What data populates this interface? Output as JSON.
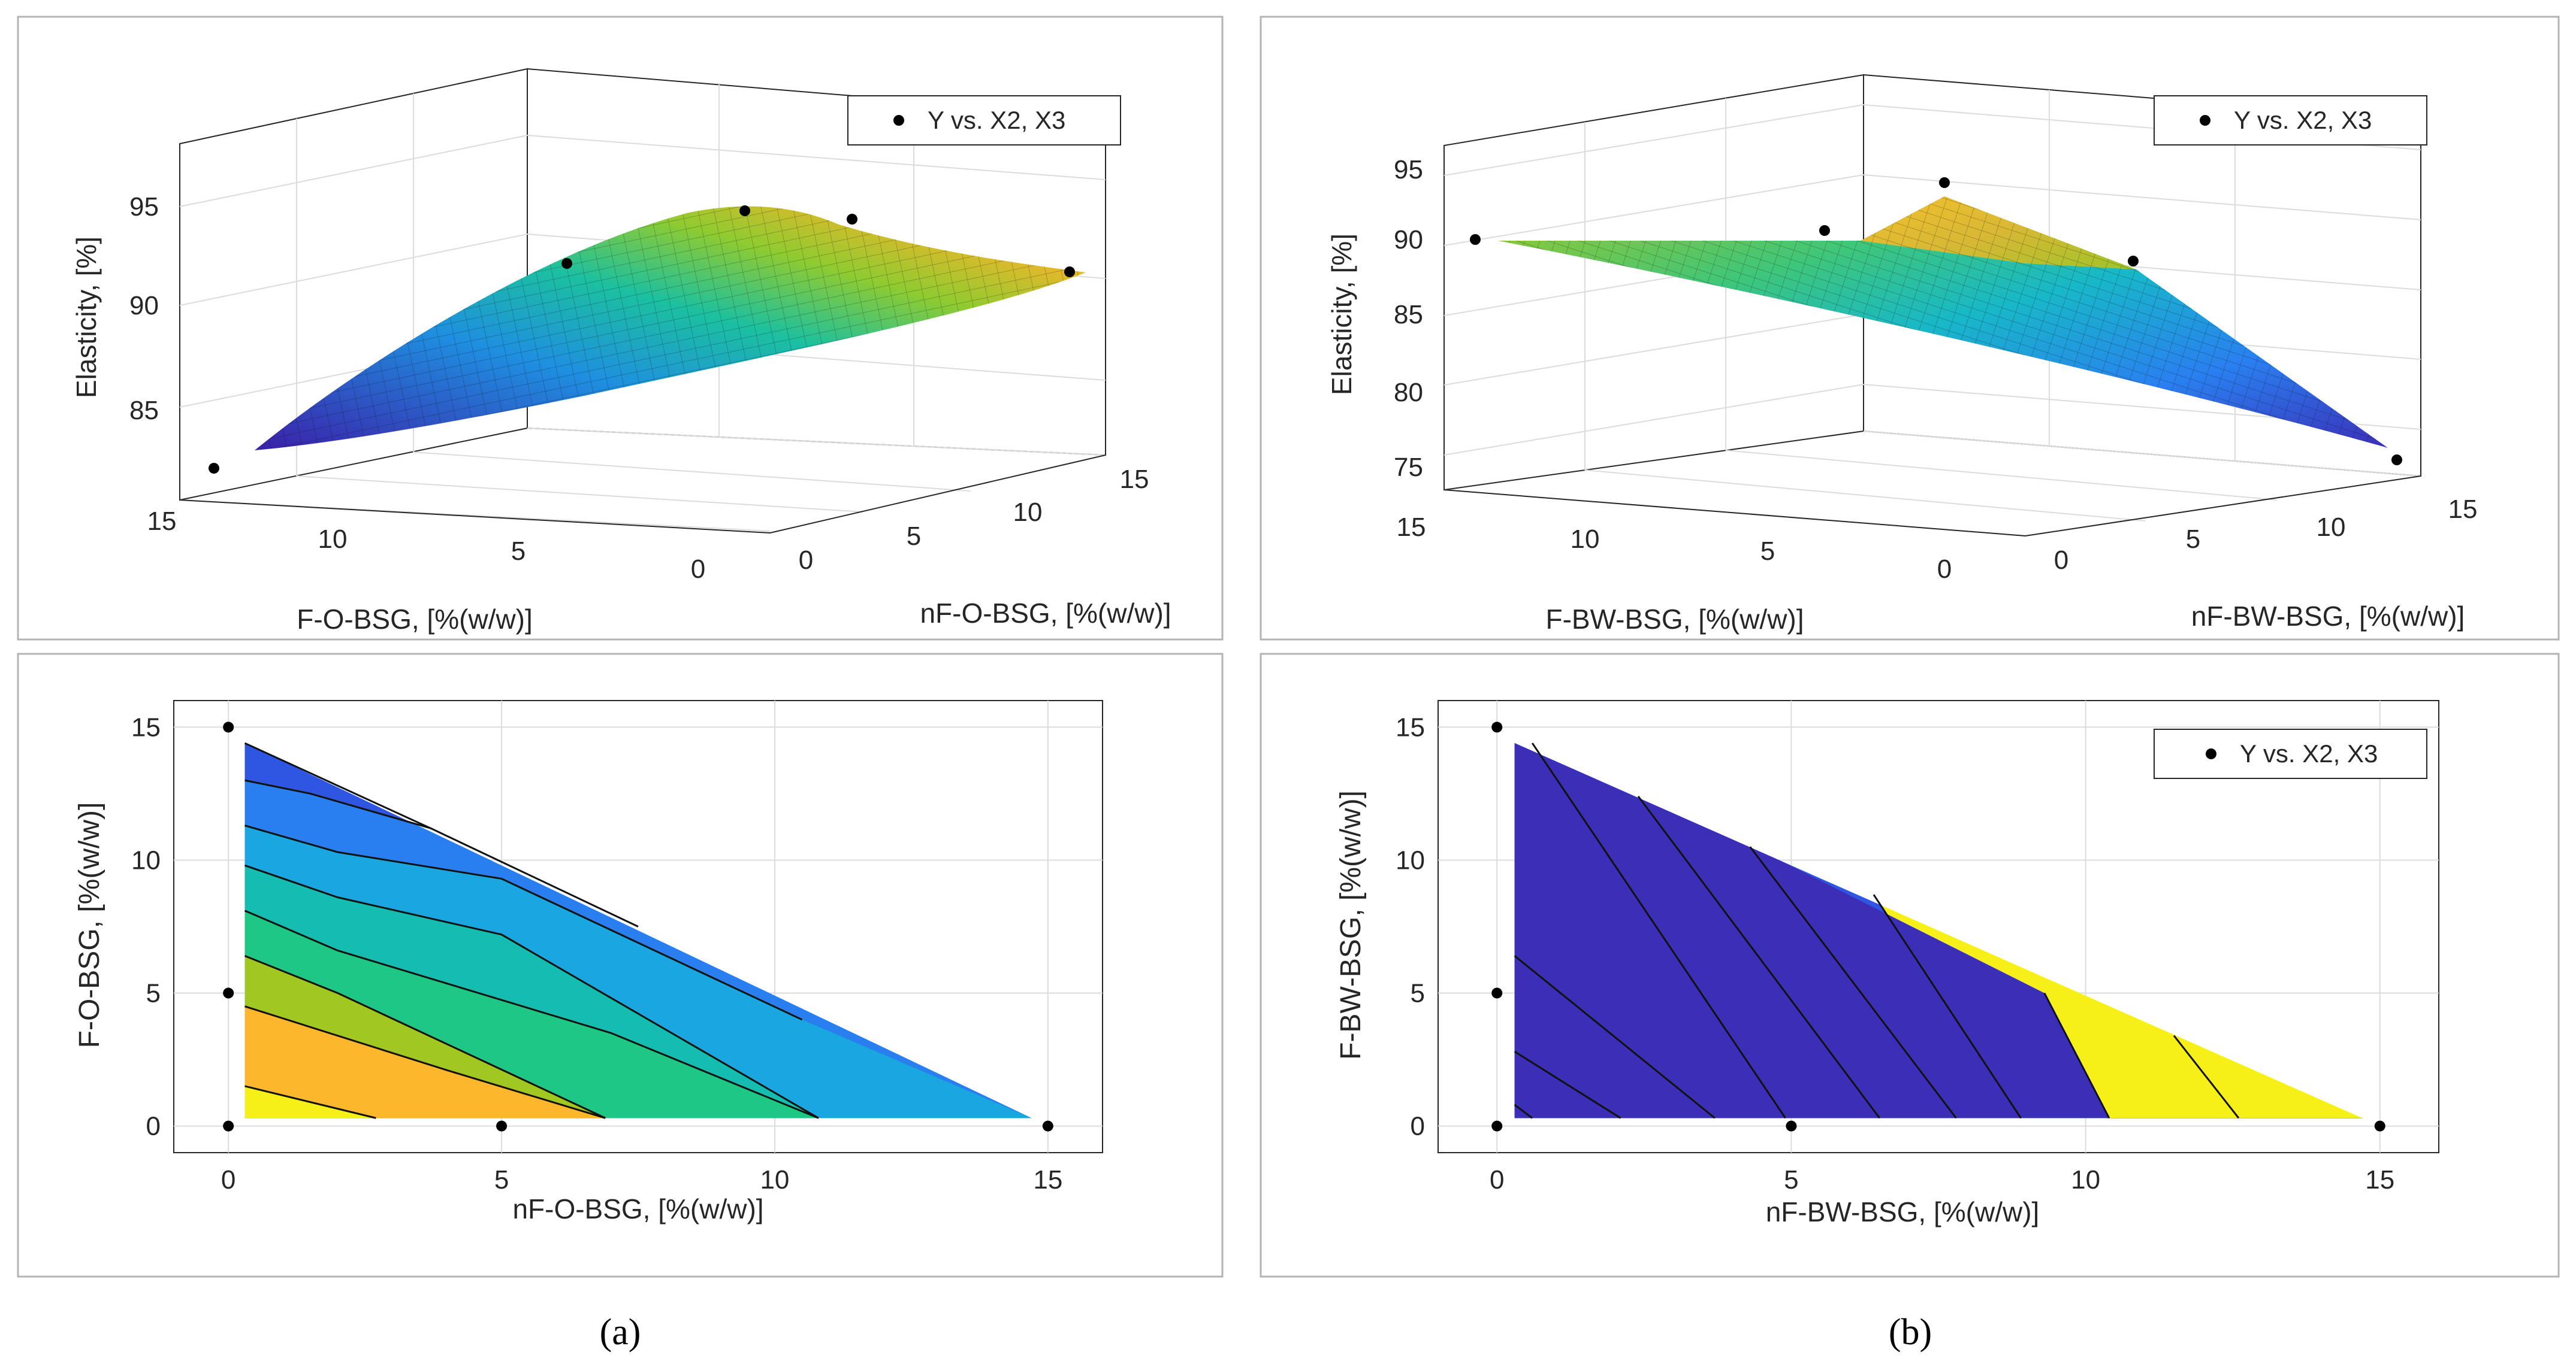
{
  "captions": {
    "a": "(a)",
    "b": "(b)"
  },
  "legend": {
    "label": "Y vs. X2, X3"
  },
  "colors": {
    "frame": "#b3b3b3",
    "grid": "#dcdcdc",
    "axis": "#262626",
    "contour_line": "#111111",
    "points": "#000000"
  },
  "chart_data": [
    {
      "panel": "a-top",
      "type": "surface3d",
      "zlabel": "Elasticity, [%]",
      "xlabel": "F-O-BSG, [%(w/w)]",
      "ylabel": "nF-O-BSG, [%(w/w)]",
      "x_ticks": [
        "15",
        "10",
        "5",
        "0"
      ],
      "y_ticks": [
        "0",
        "5",
        "10",
        "15"
      ],
      "z_ticks": [
        "85",
        "90",
        "95"
      ],
      "points": [
        {
          "x": 15,
          "y": 0,
          "z": 82.3
        },
        {
          "x": 5,
          "y": 0,
          "z": 92.5
        },
        {
          "x": 0,
          "y": 0,
          "z": 94.0
        },
        {
          "x": 0,
          "y": 5,
          "z": 93.5
        },
        {
          "x": 0,
          "y": 15,
          "z": 91.5
        }
      ]
    },
    {
      "panel": "b-top",
      "type": "surface3d",
      "zlabel": "Elasticity, [%]",
      "xlabel": "F-BW-BSG, [%(w/w)]",
      "ylabel": "nF-BW-BSG, [%(w/w)]",
      "x_ticks": [
        "15",
        "10",
        "5",
        "0"
      ],
      "y_ticks": [
        "0",
        "5",
        "10",
        "15"
      ],
      "z_ticks": [
        "75",
        "80",
        "85",
        "90",
        "95"
      ],
      "points": [
        {
          "x": 15,
          "y": 0,
          "z": 90.3
        },
        {
          "x": 5,
          "y": 0,
          "z": 91.0
        },
        {
          "x": 0,
          "y": 0,
          "z": 94.2
        },
        {
          "x": 0,
          "y": 5,
          "z": 88.8
        },
        {
          "x": 0,
          "y": 15,
          "z": 75.3
        }
      ]
    },
    {
      "panel": "a-bottom",
      "type": "contour",
      "xlabel": "nF-O-BSG, [%(w/w)]",
      "ylabel": "F-O-BSG, [%(w/w)]",
      "xlim": [
        -1,
        16
      ],
      "ylim": [
        -1,
        16
      ],
      "x_ticks": [
        "0",
        "5",
        "10",
        "15"
      ],
      "y_ticks": [
        "0",
        "5",
        "10",
        "15"
      ],
      "points": [
        {
          "x": 0,
          "y": 15
        },
        {
          "x": 0,
          "y": 5
        },
        {
          "x": 0,
          "y": 0
        },
        {
          "x": 5,
          "y": 0
        },
        {
          "x": 15,
          "y": 0
        }
      ],
      "levels": [
        {
          "color": "#3b2fb8",
          "boundary": [
            [
              0.3,
              14.4
            ],
            [
              3.7,
              11.2
            ]
          ]
        },
        {
          "color": "#2f56e0",
          "boundary": [
            [
              0.3,
              13.0
            ],
            [
              1.5,
              12.5
            ],
            [
              3.7,
              11.2
            ],
            [
              7.5,
              7.5
            ]
          ]
        },
        {
          "color": "#2a7ff0",
          "boundary": [
            [
              0.3,
              11.3
            ],
            [
              2.0,
              10.3
            ],
            [
              5.0,
              9.3
            ],
            [
              10.5,
              4.0
            ]
          ]
        },
        {
          "color": "#1aa6e0",
          "boundary": [
            [
              0.3,
              9.8
            ],
            [
              2.0,
              8.6
            ],
            [
              5.0,
              7.2
            ],
            [
              10.8,
              0.3
            ]
          ]
        },
        {
          "color": "#14bdb0",
          "boundary": [
            [
              0.3,
              8.1
            ],
            [
              2.0,
              6.6
            ],
            [
              7.0,
              3.5
            ],
            [
              10.8,
              0.3
            ]
          ]
        },
        {
          "color": "#1ec784",
          "boundary": [
            [
              0.3,
              6.4
            ],
            [
              2.0,
              5.0
            ],
            [
              6.9,
              0.3
            ]
          ]
        },
        {
          "color": "#a0c820",
          "boundary": [
            [
              0.3,
              4.5
            ],
            [
              4.0,
              2.1
            ],
            [
              6.9,
              0.3
            ]
          ]
        },
        {
          "color": "#fdb72c",
          "boundary": [
            [
              0.3,
              1.5
            ],
            [
              2.7,
              0.3
            ]
          ]
        },
        {
          "color": "#f7ef18",
          "boundary": []
        }
      ]
    },
    {
      "panel": "b-bottom",
      "type": "contour",
      "xlabel": "nF-BW-BSG, [%(w/w)]",
      "ylabel": "F-BW-BSG, [%(w/w)]",
      "xlim": [
        -1,
        16
      ],
      "ylim": [
        -1,
        16
      ],
      "x_ticks": [
        "0",
        "5",
        "10",
        "15"
      ],
      "y_ticks": [
        "0",
        "5",
        "10",
        "15"
      ],
      "points": [
        {
          "x": 0,
          "y": 15
        },
        {
          "x": 0,
          "y": 5
        },
        {
          "x": 0,
          "y": 0
        },
        {
          "x": 5,
          "y": 0
        },
        {
          "x": 15,
          "y": 0
        }
      ],
      "levels": [
        {
          "color": "#f7ef18",
          "boundary": [
            [
              0.3,
              0.8
            ],
            [
              0.6,
              0.3
            ]
          ]
        },
        {
          "color": "#fdb72c",
          "boundary": [
            [
              0.3,
              2.8
            ],
            [
              2.1,
              0.3
            ]
          ]
        },
        {
          "color": "#a0c820",
          "boundary": [
            [
              0.3,
              6.4
            ],
            [
              3.7,
              0.3
            ]
          ]
        },
        {
          "color": "#1ec784",
          "boundary": [
            [
              0.6,
              14.4
            ],
            [
              4.9,
              0.3
            ]
          ]
        },
        {
          "color": "#14bdb0",
          "boundary": [
            [
              2.4,
              12.4
            ],
            [
              6.5,
              0.3
            ]
          ]
        },
        {
          "color": "#1aa6e0",
          "boundary": [
            [
              4.3,
              10.5
            ],
            [
              7.8,
              0.3
            ]
          ]
        },
        {
          "color": "#2a7ff0",
          "boundary": [
            [
              6.4,
              8.7
            ],
            [
              8.9,
              0.3
            ]
          ]
        },
        {
          "color": "#2f56e0",
          "boundary": [
            [
              9.3,
              5.0
            ],
            [
              10.4,
              0.3
            ]
          ]
        },
        {
          "color": "#3b2fb8",
          "boundary": [
            [
              11.5,
              3.4
            ],
            [
              12.6,
              0.3
            ]
          ]
        }
      ]
    }
  ]
}
